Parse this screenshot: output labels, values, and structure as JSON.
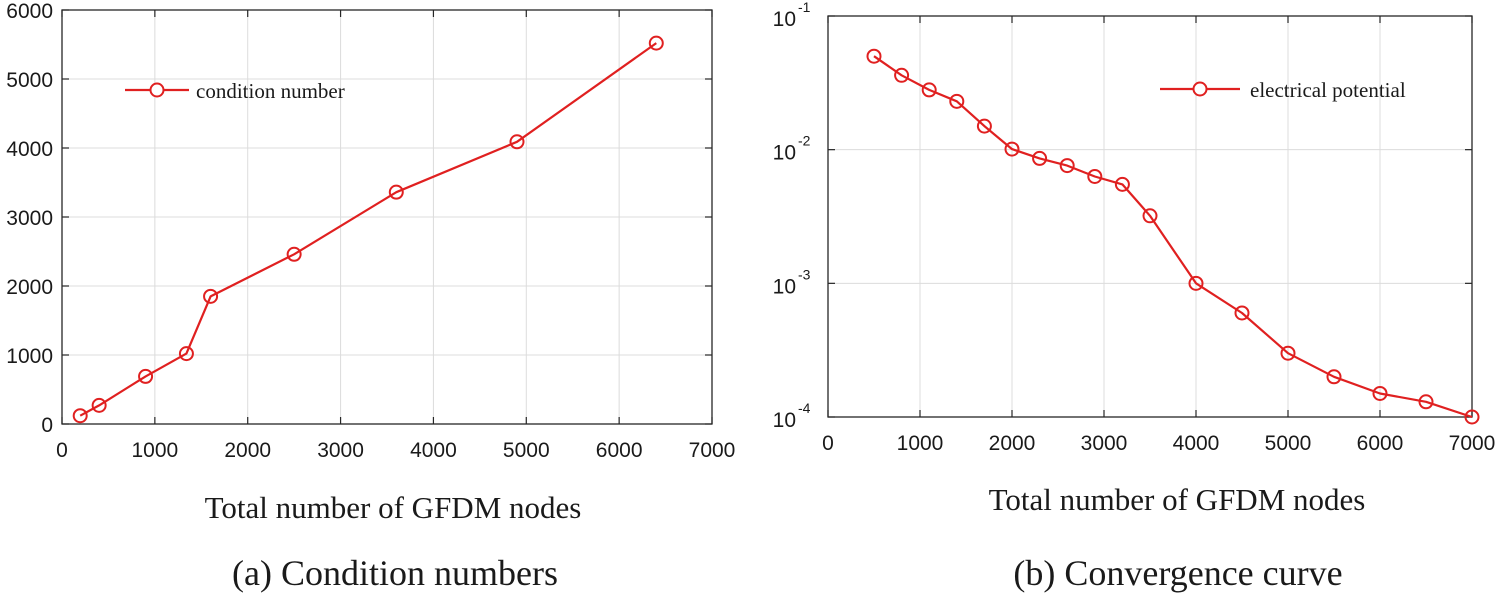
{
  "chart_data": [
    {
      "type": "line",
      "caption": "(a) Condition numbers",
      "xlabel": "Total number of GFDM nodes",
      "ylabel": "",
      "xlim": [
        0,
        7000
      ],
      "ylim": [
        0,
        6000
      ],
      "xticks": [
        0,
        1000,
        2000,
        3000,
        4000,
        5000,
        6000,
        7000
      ],
      "yticks": [
        0,
        1000,
        2000,
        3000,
        4000,
        5000,
        6000
      ],
      "xtick_labels": [
        "0",
        "1000",
        "2000",
        "3000",
        "4000",
        "5000",
        "6000",
        "7000"
      ],
      "ytick_labels": [
        "0",
        "1000",
        "2000",
        "3000",
        "4000",
        "5000",
        "6000"
      ],
      "grid": true,
      "legend_position": "top-left",
      "color": "#e02020",
      "marker": "open-circle",
      "series": [
        {
          "name": "condition number",
          "x": [
            196,
            400,
            900,
            1340,
            1600,
            2500,
            3600,
            4900,
            6400
          ],
          "y": [
            120,
            270,
            690,
            1020,
            1850,
            2460,
            3360,
            4090,
            5520
          ]
        }
      ]
    },
    {
      "type": "line",
      "caption": "(b) Convergence curve",
      "xlabel": "Total number of GFDM nodes",
      "ylabel": "",
      "xlim": [
        0,
        7000
      ],
      "ylim": [
        0.0001,
        0.1
      ],
      "yscale": "log",
      "xticks": [
        0,
        1000,
        2000,
        3000,
        4000,
        5000,
        6000,
        7000
      ],
      "xtick_labels": [
        "0",
        "1000",
        "2000",
        "3000",
        "4000",
        "5000",
        "6000",
        "7000"
      ],
      "ytick_labels": [
        {
          "base": "10",
          "exp": "-4"
        },
        {
          "base": "10",
          "exp": "-3"
        },
        {
          "base": "10",
          "exp": "-2"
        },
        {
          "base": "10",
          "exp": "-1"
        }
      ],
      "grid": true,
      "legend_position": "top-right",
      "color": "#e02020",
      "marker": "open-circle",
      "series": [
        {
          "name": "electrical potential",
          "x": [
            500,
            800,
            1100,
            1400,
            1700,
            2000,
            2300,
            2600,
            2900,
            3200,
            3500,
            4000,
            4500,
            5000,
            5500,
            6000,
            6500,
            7000
          ],
          "y": [
            0.05,
            0.036,
            0.028,
            0.023,
            0.015,
            0.0101,
            0.0086,
            0.0076,
            0.0063,
            0.0055,
            0.0032,
            0.001,
            0.0006,
            0.0003,
            0.0002,
            0.00015,
            0.00013,
            0.0001
          ]
        }
      ]
    }
  ]
}
